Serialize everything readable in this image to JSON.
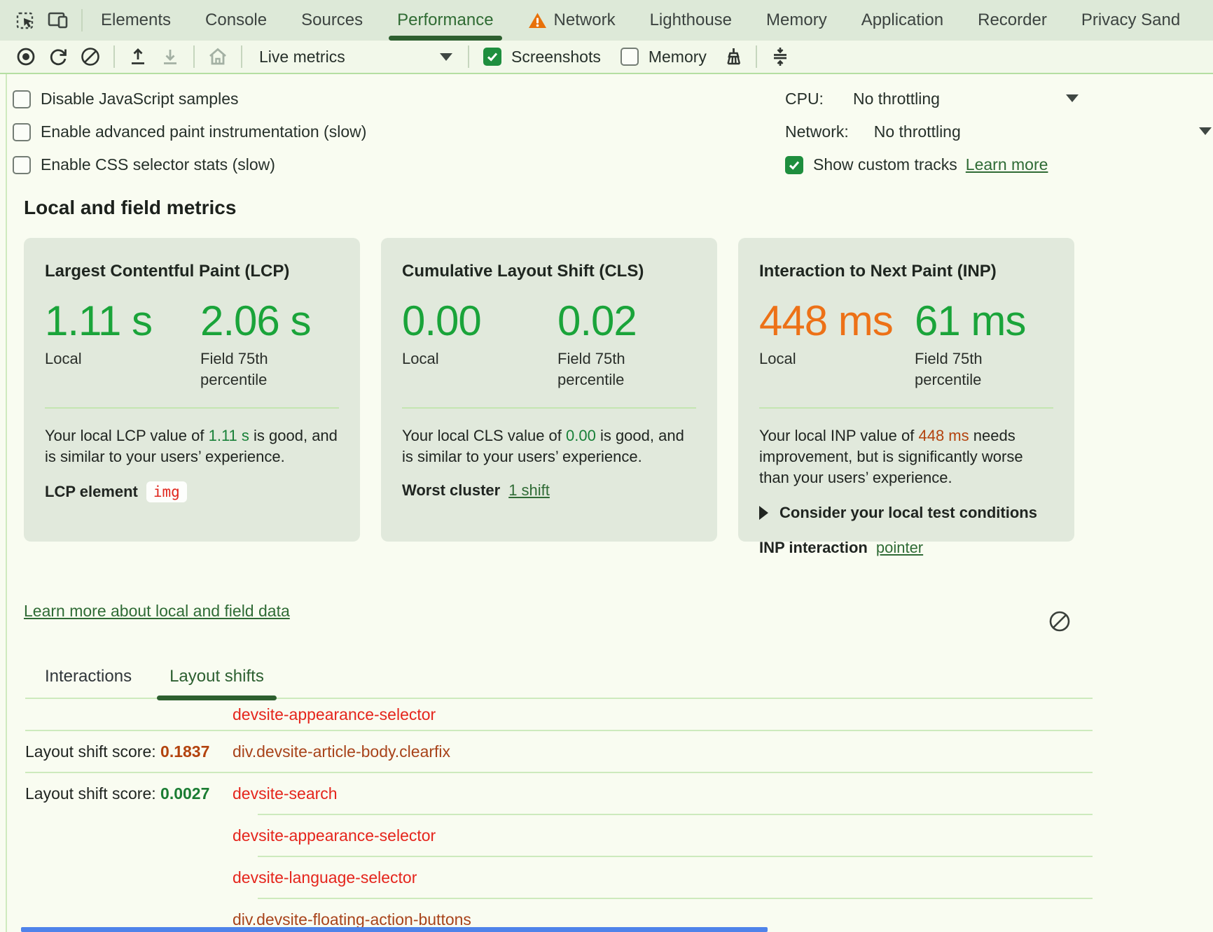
{
  "tabbar": {
    "tabs": [
      {
        "label": "Elements",
        "active": false,
        "warning": false
      },
      {
        "label": "Console",
        "active": false,
        "warning": false
      },
      {
        "label": "Sources",
        "active": false,
        "warning": false
      },
      {
        "label": "Performance",
        "active": true,
        "warning": false
      },
      {
        "label": "Network",
        "active": false,
        "warning": true
      },
      {
        "label": "Lighthouse",
        "active": false,
        "warning": false
      },
      {
        "label": "Memory",
        "active": false,
        "warning": false
      },
      {
        "label": "Application",
        "active": false,
        "warning": false
      },
      {
        "label": "Recorder",
        "active": false,
        "warning": false
      },
      {
        "label": "Privacy Sand",
        "active": false,
        "warning": false
      }
    ]
  },
  "toolbar": {
    "live_metrics_label": "Live metrics",
    "screenshots_label": "Screenshots",
    "screenshots_checked": true,
    "memory_label": "Memory",
    "memory_checked": false
  },
  "settings": {
    "checkboxes": [
      {
        "label": "Disable JavaScript samples",
        "checked": false
      },
      {
        "label": "Enable advanced paint instrumentation (slow)",
        "checked": false
      },
      {
        "label": "Enable CSS selector stats (slow)",
        "checked": false
      }
    ],
    "cpu_label": "CPU:",
    "cpu_value": "No throttling",
    "network_label": "Network:",
    "network_value": "No throttling",
    "tracks_label": "Show custom tracks",
    "tracks_checked": true,
    "tracks_learn_more": "Learn more"
  },
  "metrics": {
    "heading": "Local and field metrics",
    "cards": [
      {
        "id": "lcp",
        "title": "Largest Contentful Paint (LCP)",
        "local": {
          "value": "1.11 s",
          "color": "green",
          "label": "Local"
        },
        "field": {
          "value": "2.06 s",
          "color": "green",
          "label": "Field 75th percentile"
        },
        "desc": {
          "prefix": "Your local LCP value of ",
          "value": "1.11 s",
          "value_color": "green",
          "suffix": " is good, and is similar to your users’ experience."
        },
        "extra": {
          "type": "chip",
          "label": "LCP element",
          "chip": "img"
        }
      },
      {
        "id": "cls",
        "title": "Cumulative Layout Shift (CLS)",
        "local": {
          "value": "0.00",
          "color": "green",
          "label": "Local"
        },
        "field": {
          "value": "0.02",
          "color": "green",
          "label": "Field 75th percentile"
        },
        "desc": {
          "prefix": "Your local CLS value of ",
          "value": "0.00",
          "value_color": "green",
          "suffix": " is good, and is similar to your users’ experience."
        },
        "extra": {
          "type": "link",
          "label": "Worst cluster",
          "link": "1 shift"
        }
      },
      {
        "id": "inp",
        "title": "Interaction to Next Paint (INP)",
        "local": {
          "value": "448 ms",
          "color": "orange",
          "label": "Local"
        },
        "field": {
          "value": "61 ms",
          "color": "green",
          "label": "Field 75th percentile"
        },
        "desc": {
          "prefix": "Your local INP value of ",
          "value": "448 ms",
          "value_color": "orange",
          "suffix": " needs improvement, but is significantly worse than your users’ experience."
        },
        "extra": {
          "type": "inp",
          "disclosure": "Consider your local test conditions",
          "label": "INP interaction",
          "link": "pointer"
        }
      }
    ],
    "learn_link": "Learn more about local and field data"
  },
  "shifts": {
    "tabs": [
      {
        "label": "Interactions",
        "active": false
      },
      {
        "label": "Layout shifts",
        "active": true
      }
    ],
    "score_label": "Layout shift score: ",
    "rows": [
      {
        "score": "",
        "score_color": "",
        "selector": "devsite-appearance-selector",
        "selector_color": "red",
        "sep": "full",
        "short": true
      },
      {
        "score": "0.1837",
        "score_color": "orange",
        "selector": "div.devsite-article-body.clearfix",
        "selector_color": "rust",
        "sep": "full",
        "short": false
      },
      {
        "score": "0.0027",
        "score_color": "green",
        "selector": "devsite-search",
        "selector_color": "red",
        "sep": "indent",
        "short": false
      },
      {
        "score": "",
        "score_color": "",
        "selector": "devsite-appearance-selector",
        "selector_color": "red",
        "sep": "indent",
        "short": false
      },
      {
        "score": "",
        "score_color": "",
        "selector": "devsite-language-selector",
        "selector_color": "red",
        "sep": "indent",
        "short": false
      },
      {
        "score": "",
        "score_color": "",
        "selector": "div.devsite-floating-action-buttons",
        "selector_color": "rust",
        "sep": "none",
        "short": false
      }
    ]
  },
  "colors": {
    "good_green_big": "#1aa43a",
    "good_green_inline": "#188038",
    "warning_orange_big": "#ed7117",
    "needs_improvement_inline": "#b3430e",
    "link_green": "#2f6b35",
    "selector_red": "#e5251c",
    "selector_rust": "#a8431a",
    "active_tab_green": "#2d5f2f",
    "card_background": "#e1e9dc",
    "selection_blue": "#4f83ea",
    "checkbox_checked_green": "#1e8e3e",
    "warning_triangle_orange": "#e8710a"
  }
}
